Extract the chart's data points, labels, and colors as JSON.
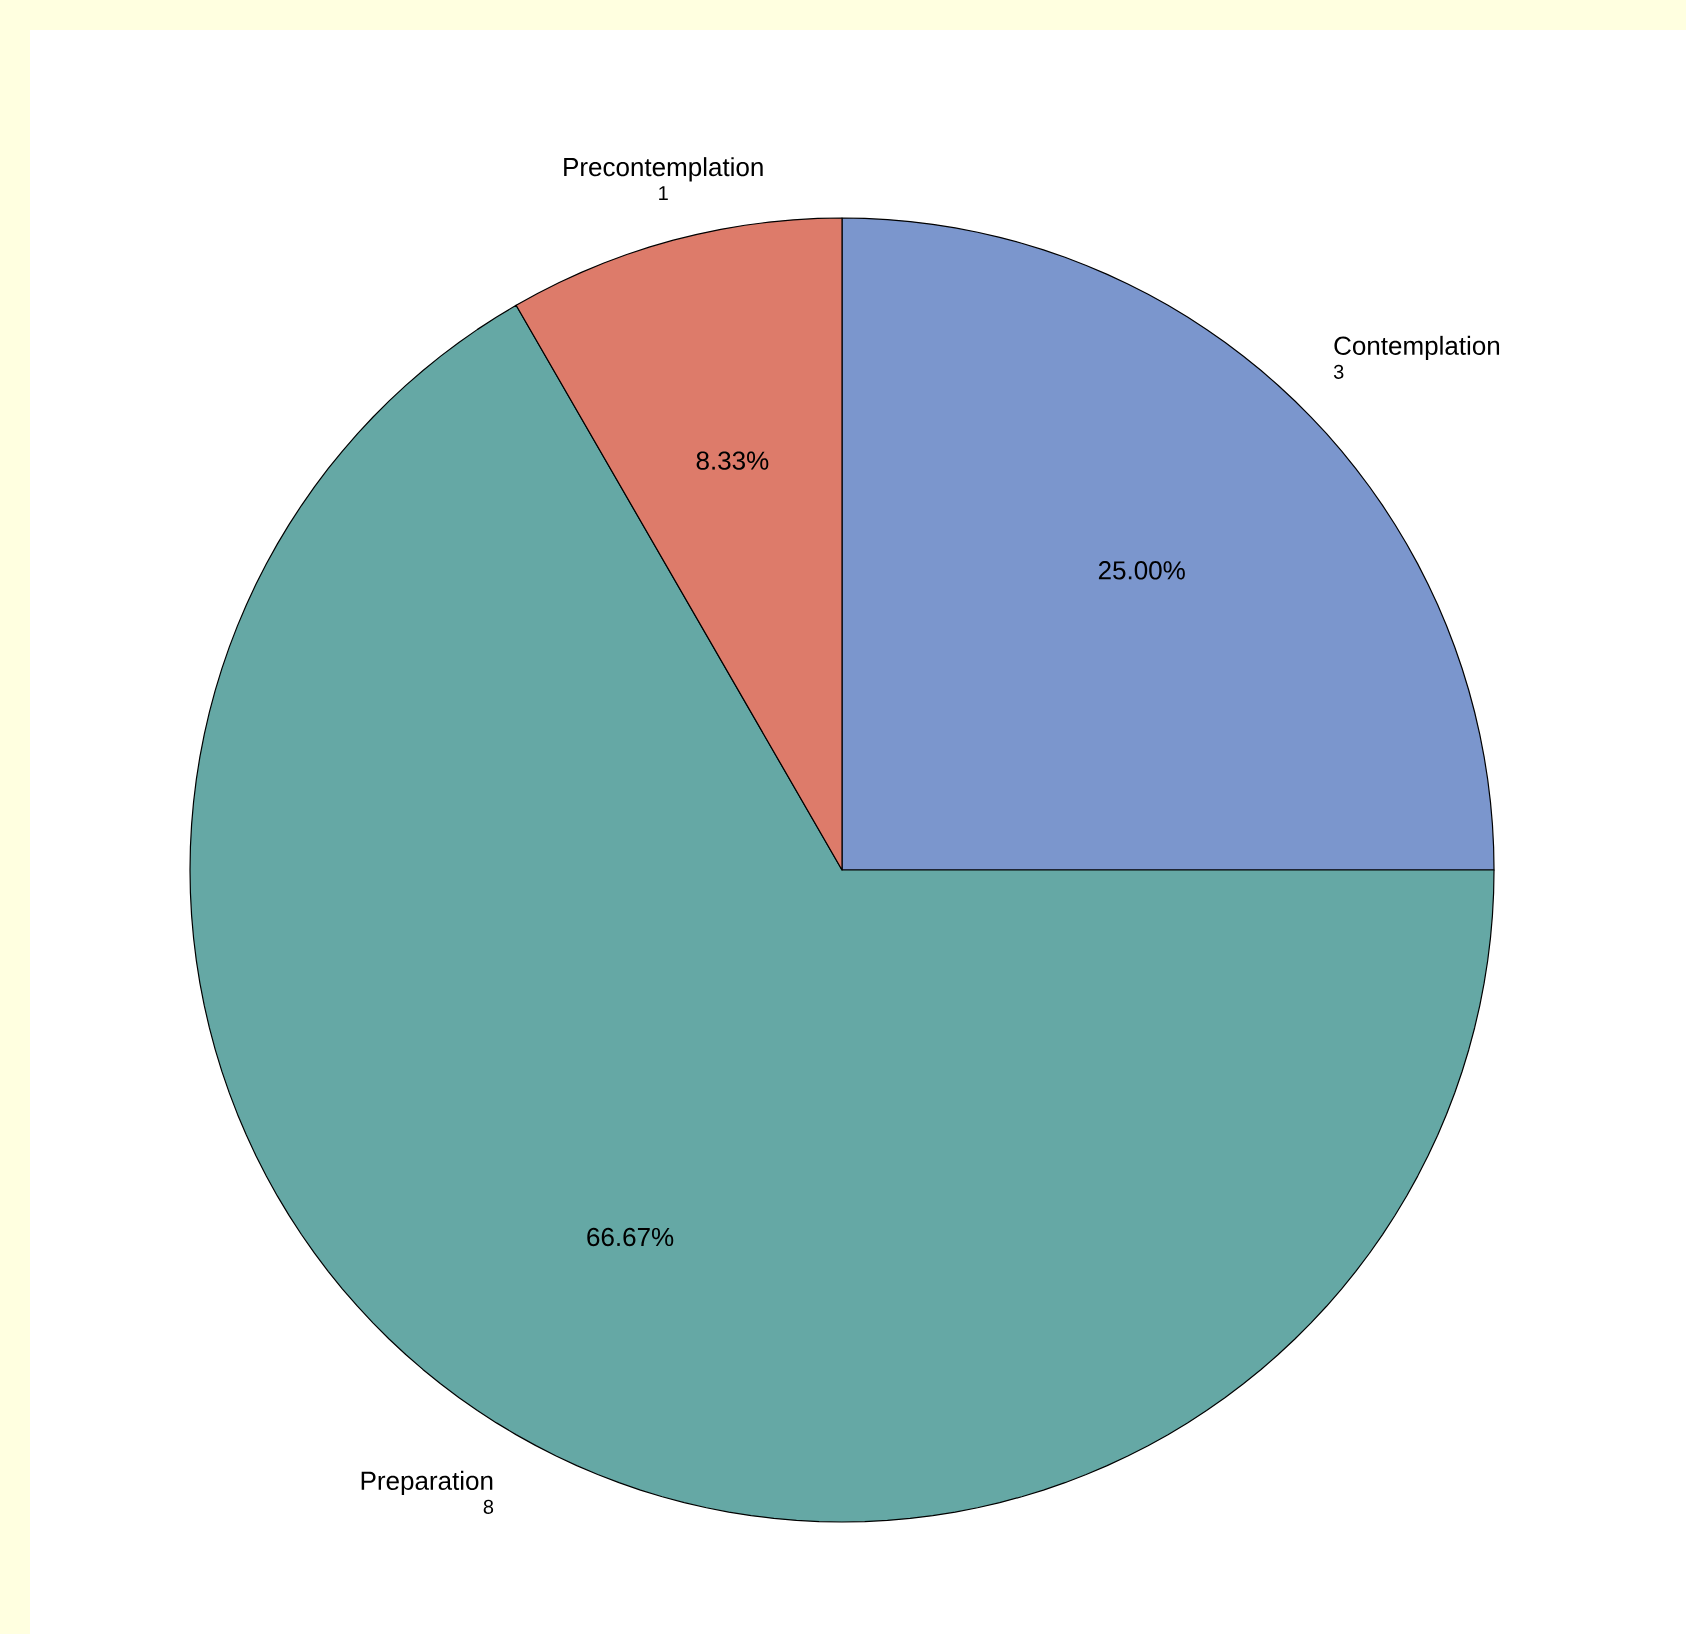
{
  "chart_data": {
    "type": "pie",
    "categories": [
      "Contemplation",
      "Preparation",
      "Precontemplation"
    ],
    "values": [
      25.0,
      66.67,
      8.33
    ],
    "colors": [
      "#7b96cd",
      "#65a8a5",
      "#dd7b6a"
    ],
    "value_labels": [
      "25.00%",
      "66.67%",
      "8.33%"
    ],
    "annotations": [
      "3",
      "8",
      "1"
    ]
  }
}
